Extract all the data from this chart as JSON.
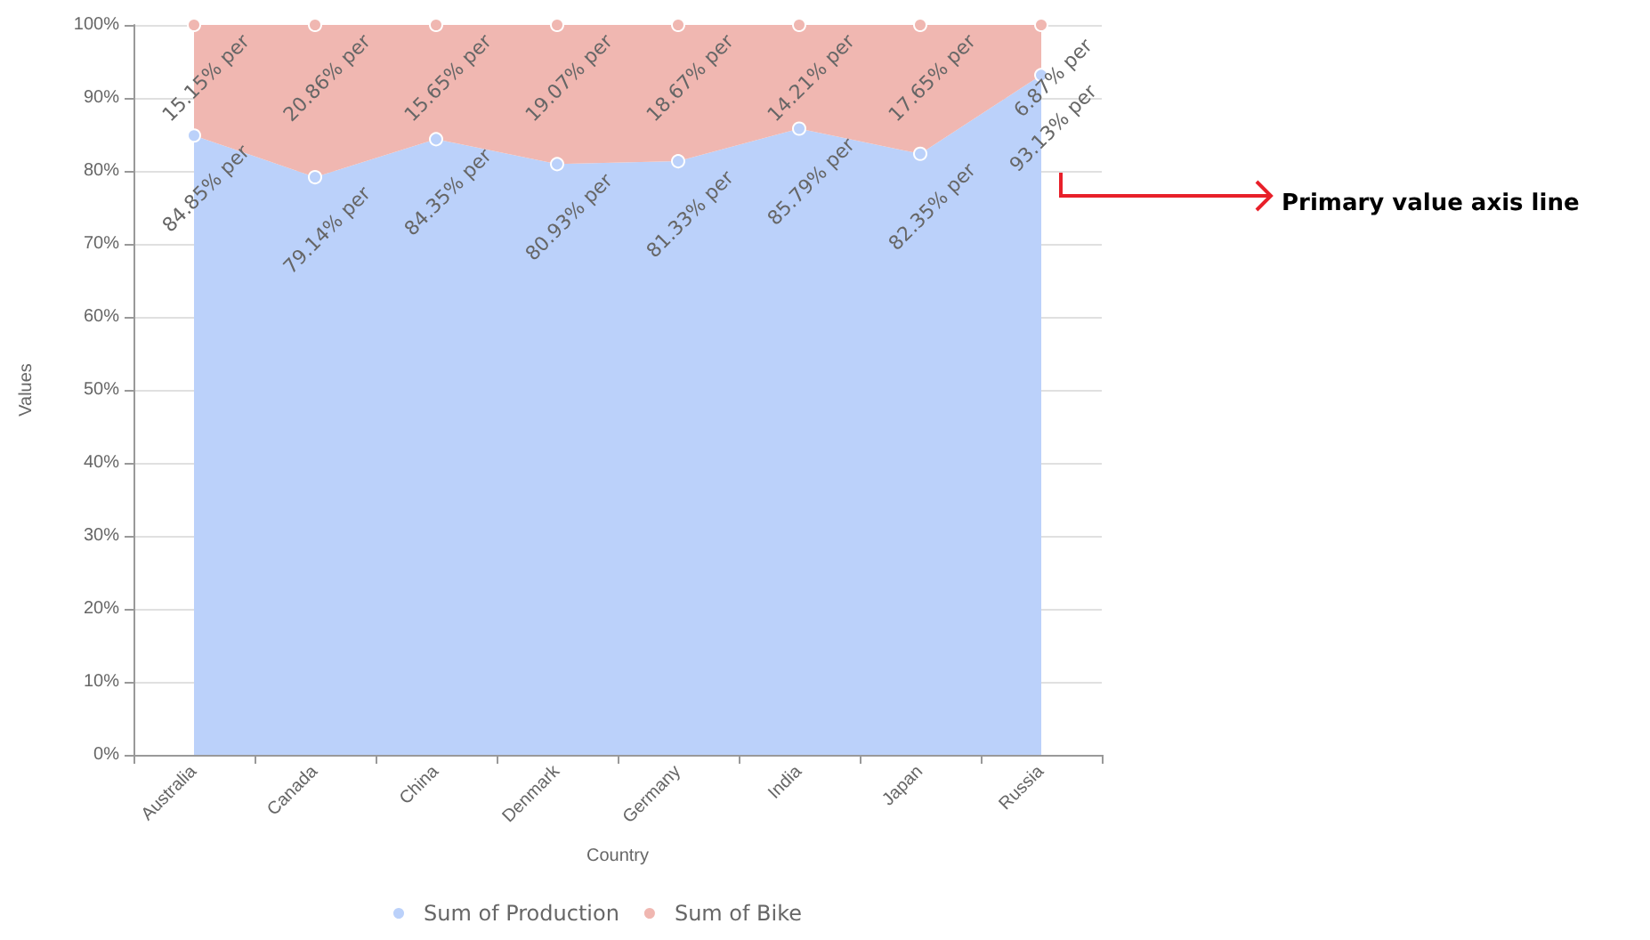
{
  "chart_data": {
    "type": "area",
    "stacked": true,
    "xlabel": "Country",
    "ylabel": "Values",
    "categories": [
      "Australia",
      "Canada",
      "China",
      "Denmark",
      "Germany",
      "India",
      "Japan",
      "Russia"
    ],
    "series": [
      {
        "name": "Sum of Production",
        "color": "#bbd1fa",
        "values": [
          84.85,
          79.14,
          84.35,
          80.93,
          81.33,
          85.79,
          82.35,
          93.13
        ],
        "value_labels": [
          "84.85% per",
          "79.14% per",
          "84.35% per",
          "80.93% per",
          "81.33% per",
          "85.79% per",
          "82.35% per",
          "93.13% per"
        ]
      },
      {
        "name": "Sum of Bike",
        "color": "#f0b7b1",
        "values": [
          15.15,
          20.86,
          15.65,
          19.07,
          18.67,
          14.21,
          17.65,
          6.87
        ],
        "value_labels": [
          "15.15% per",
          "20.86% per",
          "15.65% per",
          "19.07% per",
          "18.67% per",
          "14.21% per",
          "17.65% per",
          "6.87% per"
        ]
      }
    ],
    "ylim": [
      0,
      100
    ],
    "yticks": [
      {
        "value": 0,
        "label": "0%"
      },
      {
        "value": 10,
        "label": "10%"
      },
      {
        "value": 20,
        "label": "20%"
      },
      {
        "value": 30,
        "label": "30%"
      },
      {
        "value": 40,
        "label": "40%"
      },
      {
        "value": 50,
        "label": "50%"
      },
      {
        "value": 60,
        "label": "60%"
      },
      {
        "value": 70,
        "label": "70%"
      },
      {
        "value": 80,
        "label": "80%"
      },
      {
        "value": 90,
        "label": "90%"
      },
      {
        "value": 100,
        "label": "100%"
      }
    ],
    "grid": "y",
    "legend": "bottom",
    "marker": "circle",
    "annotations": [
      "Primary value axis line"
    ]
  }
}
